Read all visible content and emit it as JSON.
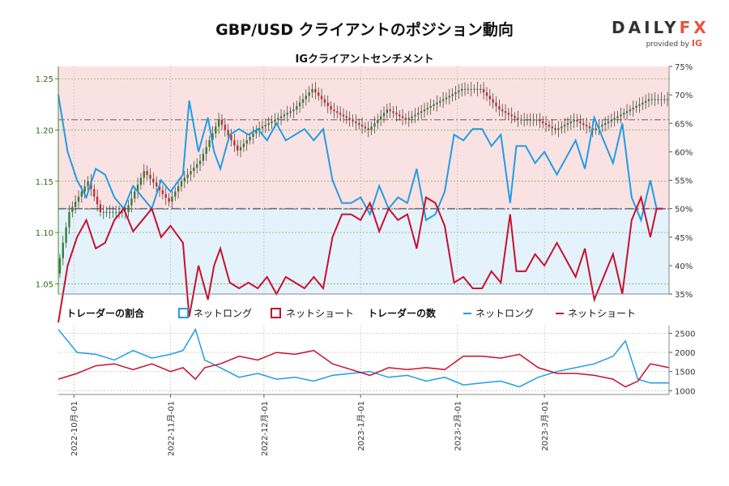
{
  "title": "GBP/USD クライアントのポジション動向",
  "subtitle": "IGクライアントセンチメント",
  "logo": {
    "main_a": "DAILY",
    "main_b": "FX",
    "sub_a": "provided by",
    "sub_b": "IG"
  },
  "colors": {
    "net_long": "#1f9de6",
    "net_short": "#c8102e",
    "long_bg": "#e3f2fb",
    "short_bg": "#fbe2e2",
    "candle_up": "#2e7d32",
    "candle_down": "#c62828",
    "grid": "#6aa84f"
  },
  "legend": {
    "ratio_title": "トレーダーの割合",
    "ratio_long": "ネットロング",
    "ratio_short": "ネットショート",
    "count_title": "トレーダーの数",
    "count_long": "ネットロング",
    "count_short": "ネットショート"
  },
  "chart_data": {
    "type": "line",
    "price": {
      "name": "GBP/USD",
      "ylim": [
        1.04,
        1.262
      ],
      "ticks": [
        "1.05",
        "1.10",
        "1.15",
        "1.20",
        "1.25"
      ],
      "anchors": [
        [
          0,
          1.06
        ],
        [
          4,
          1.12
        ],
        [
          10,
          1.15
        ],
        [
          14,
          1.12
        ],
        [
          22,
          1.12
        ],
        [
          28,
          1.16
        ],
        [
          36,
          1.13
        ],
        [
          40,
          1.15
        ],
        [
          46,
          1.17
        ],
        [
          52,
          1.21
        ],
        [
          58,
          1.18
        ],
        [
          64,
          1.2
        ],
        [
          70,
          1.21
        ],
        [
          76,
          1.22
        ],
        [
          82,
          1.24
        ],
        [
          88,
          1.22
        ],
        [
          94,
          1.21
        ],
        [
          100,
          1.2
        ],
        [
          106,
          1.22
        ],
        [
          112,
          1.21
        ],
        [
          118,
          1.22
        ],
        [
          124,
          1.23
        ],
        [
          130,
          1.24
        ],
        [
          136,
          1.24
        ],
        [
          142,
          1.22
        ],
        [
          148,
          1.21
        ],
        [
          154,
          1.21
        ],
        [
          160,
          1.2
        ],
        [
          166,
          1.21
        ],
        [
          172,
          1.2
        ],
        [
          178,
          1.21
        ],
        [
          184,
          1.22
        ],
        [
          190,
          1.23
        ],
        [
          196,
          1.23
        ]
      ]
    },
    "ratio": {
      "ylim": [
        35,
        75
      ],
      "ticks": [
        "35%",
        "40%",
        "45%",
        "50%",
        "55%",
        "60%",
        "65%",
        "70%",
        "75%"
      ],
      "series": [
        {
          "name": "ネットロング",
          "anchors": [
            [
              0,
              70
            ],
            [
              3,
              60
            ],
            [
              6,
              55
            ],
            [
              9,
              52
            ],
            [
              12,
              57
            ],
            [
              15,
              56
            ],
            [
              18,
              52
            ],
            [
              21,
              50
            ],
            [
              24,
              54
            ],
            [
              27,
              52
            ],
            [
              30,
              50
            ],
            [
              33,
              55
            ],
            [
              36,
              53
            ],
            [
              40,
              56
            ],
            [
              42,
              69
            ],
            [
              45,
              60
            ],
            [
              48,
              66
            ],
            [
              50,
              60
            ],
            [
              52,
              57
            ],
            [
              55,
              63
            ],
            [
              58,
              64
            ],
            [
              61,
              63
            ],
            [
              64,
              64
            ],
            [
              67,
              62
            ],
            [
              70,
              65
            ],
            [
              73,
              62
            ],
            [
              76,
              63
            ],
            [
              79,
              64
            ],
            [
              82,
              62
            ],
            [
              85,
              64
            ],
            [
              88,
              55
            ],
            [
              91,
              51
            ],
            [
              94,
              51
            ],
            [
              97,
              52
            ],
            [
              100,
              49
            ],
            [
              103,
              54
            ],
            [
              106,
              50
            ],
            [
              109,
              52
            ],
            [
              112,
              51
            ],
            [
              115,
              57
            ],
            [
              118,
              48
            ],
            [
              121,
              49
            ],
            [
              124,
              53
            ],
            [
              127,
              63
            ],
            [
              130,
              62
            ],
            [
              133,
              64
            ],
            [
              136,
              64
            ],
            [
              139,
              61
            ],
            [
              142,
              63
            ],
            [
              145,
              51
            ],
            [
              147,
              61
            ],
            [
              150,
              61
            ],
            [
              153,
              58
            ],
            [
              156,
              60
            ],
            [
              160,
              56
            ],
            [
              163,
              59
            ],
            [
              166,
              62
            ],
            [
              169,
              57
            ],
            [
              172,
              66
            ],
            [
              175,
              62
            ],
            [
              178,
              58
            ],
            [
              181,
              65
            ],
            [
              184,
              52
            ],
            [
              187,
              48
            ],
            [
              190,
              55
            ],
            [
              192,
              50
            ],
            [
              194,
              50
            ]
          ]
        }
      ]
    },
    "counts": {
      "ylim": [
        900,
        2700
      ],
      "ticks": [
        "1000",
        "1500",
        "2000",
        "2500"
      ],
      "series": [
        {
          "name": "ネットロング",
          "anchors": [
            [
              0,
              2600
            ],
            [
              6,
              2000
            ],
            [
              12,
              1950
            ],
            [
              18,
              1800
            ],
            [
              24,
              2050
            ],
            [
              30,
              1850
            ],
            [
              36,
              1950
            ],
            [
              40,
              2050
            ],
            [
              44,
              2600
            ],
            [
              47,
              1800
            ],
            [
              52,
              1600
            ],
            [
              58,
              1350
            ],
            [
              64,
              1450
            ],
            [
              70,
              1300
            ],
            [
              76,
              1350
            ],
            [
              82,
              1250
            ],
            [
              88,
              1400
            ],
            [
              94,
              1450
            ],
            [
              100,
              1500
            ],
            [
              106,
              1350
            ],
            [
              112,
              1400
            ],
            [
              118,
              1250
            ],
            [
              124,
              1350
            ],
            [
              130,
              1150
            ],
            [
              136,
              1200
            ],
            [
              142,
              1250
            ],
            [
              148,
              1100
            ],
            [
              154,
              1350
            ],
            [
              160,
              1500
            ],
            [
              166,
              1600
            ],
            [
              172,
              1700
            ],
            [
              178,
              1900
            ],
            [
              182,
              2300
            ],
            [
              186,
              1300
            ],
            [
              190,
              1200
            ],
            [
              196,
              1200
            ]
          ]
        },
        {
          "name": "ネットショート",
          "anchors": [
            [
              0,
              1300
            ],
            [
              6,
              1450
            ],
            [
              12,
              1650
            ],
            [
              18,
              1700
            ],
            [
              24,
              1550
            ],
            [
              30,
              1700
            ],
            [
              36,
              1500
            ],
            [
              40,
              1600
            ],
            [
              44,
              1300
            ],
            [
              47,
              1600
            ],
            [
              52,
              1700
            ],
            [
              58,
              1900
            ],
            [
              64,
              1800
            ],
            [
              70,
              2000
            ],
            [
              76,
              1950
            ],
            [
              82,
              2050
            ],
            [
              88,
              1700
            ],
            [
              94,
              1550
            ],
            [
              100,
              1400
            ],
            [
              106,
              1600
            ],
            [
              112,
              1550
            ],
            [
              118,
              1600
            ],
            [
              124,
              1550
            ],
            [
              130,
              1900
            ],
            [
              136,
              1900
            ],
            [
              142,
              1850
            ],
            [
              148,
              1950
            ],
            [
              154,
              1600
            ],
            [
              160,
              1450
            ],
            [
              166,
              1450
            ],
            [
              172,
              1400
            ],
            [
              178,
              1300
            ],
            [
              182,
              1100
            ],
            [
              186,
              1250
            ],
            [
              190,
              1700
            ],
            [
              196,
              1600
            ]
          ]
        }
      ]
    },
    "x": {
      "categories": [
        "2022-10月-01",
        "2022-11月-01",
        "2022-12月-01",
        "2023-1月-01",
        "2023-2月-01",
        "2023-3月-01"
      ],
      "positions": [
        5,
        36,
        66,
        97,
        128,
        156
      ],
      "range": [
        0,
        196
      ]
    },
    "reference_levels": {
      "price": [
        1.21,
        1.123
      ],
      "ratio": [
        50,
        65
      ]
    },
    "grid": true
  }
}
